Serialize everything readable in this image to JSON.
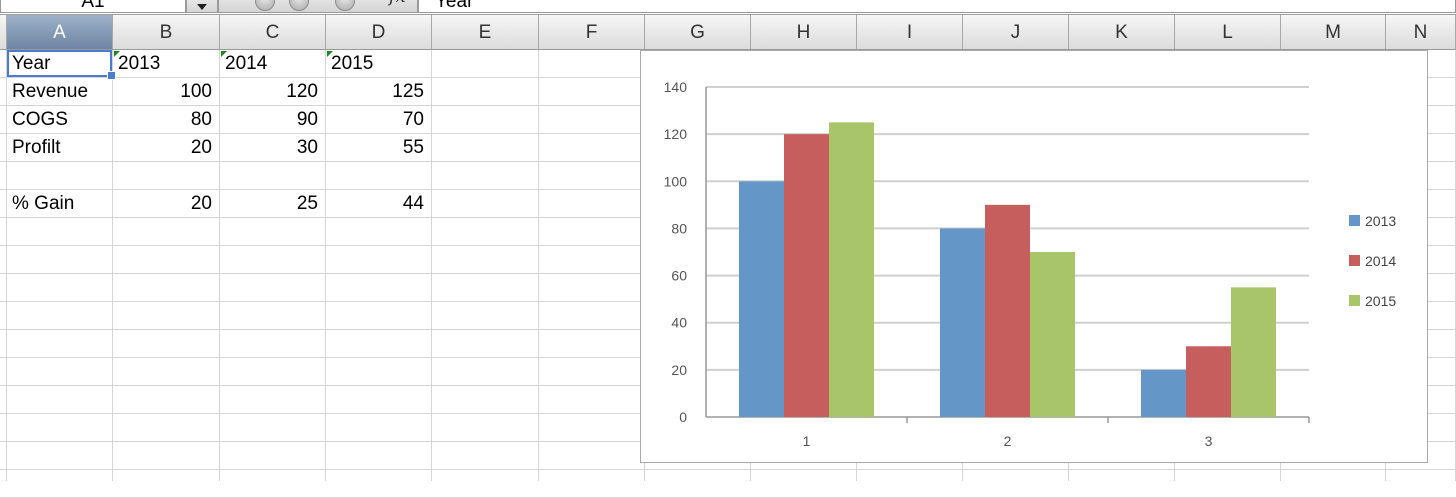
{
  "formula_bar": {
    "name_box": "A1",
    "fx_symbol": "fx",
    "formula_value": "Year"
  },
  "columns": [
    "A",
    "B",
    "C",
    "D",
    "E",
    "F",
    "G",
    "H",
    "I",
    "J",
    "K",
    "L",
    "M",
    "N"
  ],
  "selected_column": "A",
  "table": {
    "header": [
      "Year",
      "2013",
      "2014",
      "2015"
    ],
    "rows": [
      {
        "label": "Revenue",
        "values": [
          "100",
          "120",
          "125"
        ]
      },
      {
        "label": "COGS",
        "values": [
          "80",
          "90",
          "70"
        ]
      },
      {
        "label": "Profilt",
        "values": [
          "20",
          "30",
          "55"
        ]
      },
      {
        "label": "",
        "values": [
          "",
          "",
          ""
        ]
      },
      {
        "label": "% Gain",
        "values": [
          "20",
          "25",
          "44"
        ]
      }
    ]
  },
  "colors": {
    "active_cell_border": "#4a7bd0",
    "series_2013": "#6596c8",
    "series_2014": "#c65e5e",
    "series_2015": "#a9c56a",
    "gridline": "#d0d0d0"
  },
  "chart_data": {
    "type": "bar",
    "categories": [
      "1",
      "2",
      "3"
    ],
    "series": [
      {
        "name": "2013",
        "values": [
          100,
          80,
          20
        ],
        "color": "#6596c8"
      },
      {
        "name": "2014",
        "values": [
          120,
          90,
          30
        ],
        "color": "#c65e5e"
      },
      {
        "name": "2015",
        "values": [
          125,
          70,
          55
        ],
        "color": "#a9c56a"
      }
    ],
    "ylim": [
      0,
      140
    ],
    "yticks": [
      "0",
      "20",
      "40",
      "60",
      "80",
      "100",
      "120",
      "140"
    ],
    "grid": true,
    "legend": "right",
    "title": "",
    "xlabel": "",
    "ylabel": ""
  }
}
